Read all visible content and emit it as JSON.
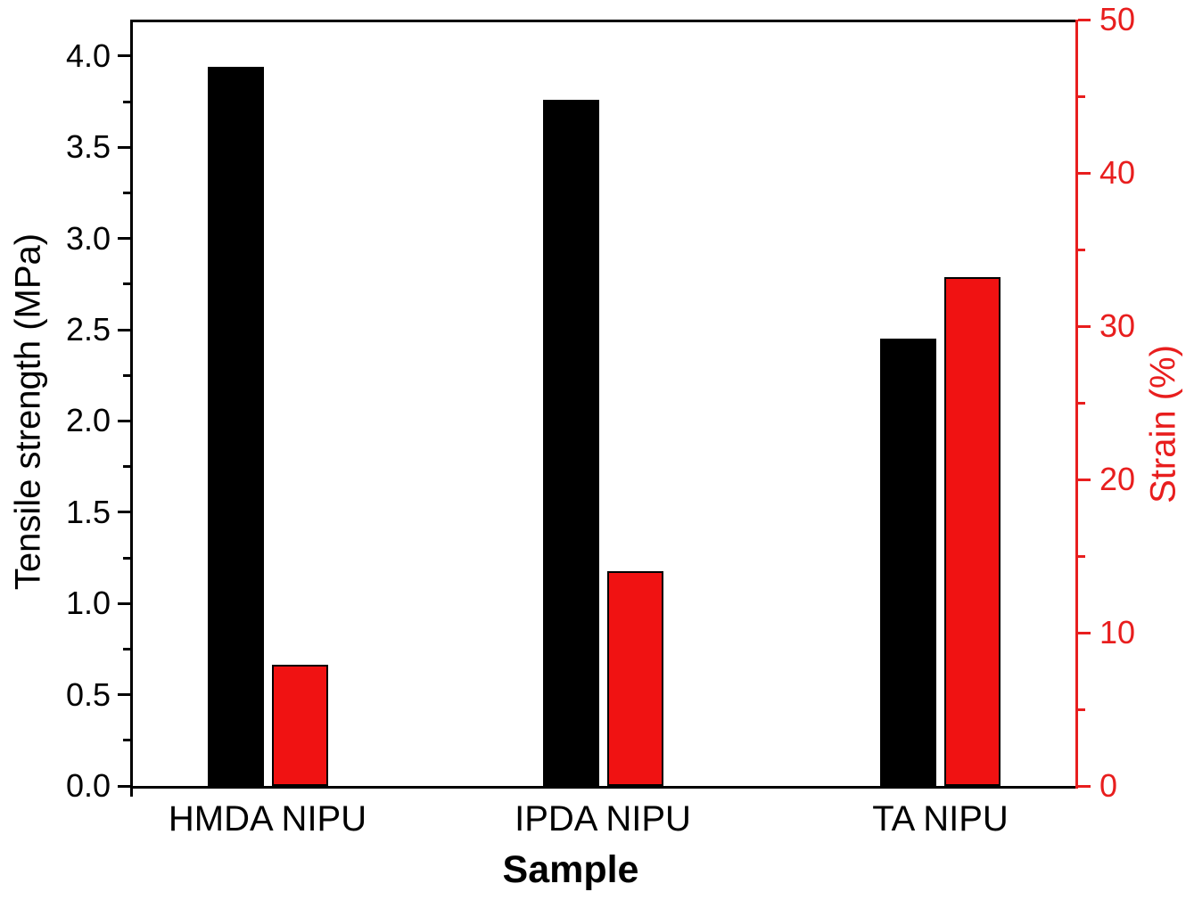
{
  "chart_data": {
    "type": "bar",
    "title": "",
    "xlabel": "Sample",
    "categories": [
      "HMDA NIPU",
      "IPDA NIPU",
      "TA NIPU"
    ],
    "series": [
      {
        "name": "Tensile strength",
        "yaxis": "left",
        "color": "#000000",
        "values": [
          3.94,
          3.76,
          2.45
        ]
      },
      {
        "name": "Strain",
        "yaxis": "right",
        "color": "#f01212",
        "border_color": "#000000",
        "values": [
          7.9,
          14.0,
          33.2
        ]
      }
    ],
    "axes": {
      "left": {
        "label": "Tensile strength (MPa)",
        "color": "#000000",
        "range": [
          0,
          4.2
        ],
        "major_ticks": [
          0,
          0.5,
          1.0,
          1.5,
          2.0,
          2.5,
          3.0,
          3.5,
          4.0
        ],
        "tick_labels": [
          "0.0",
          "0.5",
          "1.0",
          "1.5",
          "2.0",
          "2.5",
          "3.0",
          "3.5",
          "4.0"
        ],
        "minor_ticks": [
          0.25,
          0.75,
          1.25,
          1.75,
          2.25,
          2.75,
          3.25,
          3.75
        ]
      },
      "right": {
        "label": "Strain (%)",
        "color": "#e81e1e",
        "range": [
          0,
          50
        ],
        "major_ticks": [
          0,
          10,
          20,
          30,
          40,
          50
        ],
        "tick_labels": [
          "0",
          "10",
          "20",
          "30",
          "40",
          "50"
        ],
        "minor_ticks": [
          5,
          15,
          25,
          35,
          45
        ]
      },
      "bottom": {
        "label": "Sample",
        "color": "#000000"
      }
    },
    "grid": false,
    "legend": "none",
    "background": "#ffffff"
  }
}
